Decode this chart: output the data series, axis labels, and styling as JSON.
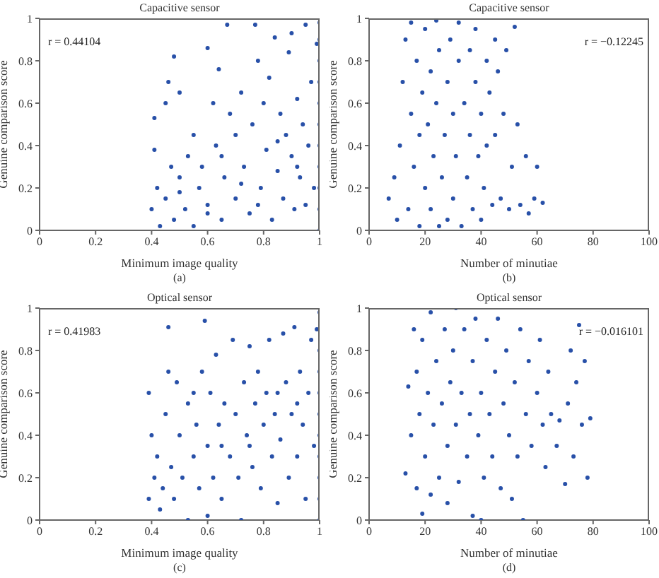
{
  "chart_data": [
    {
      "type": "scatter",
      "title": "Capacitive sensor",
      "xlabel": "Minimum image quality",
      "ylabel": "Genuine comparison score",
      "annotations": [
        "r = 0.44104",
        "(a)"
      ],
      "marker": "circle",
      "xlim": [
        0,
        1
      ],
      "xticks": [
        0,
        0.2,
        0.4,
        0.6,
        0.8,
        1
      ],
      "ylim": [
        0,
        1
      ],
      "yticks": [
        0,
        0.2,
        0.4,
        0.6,
        0.8,
        1
      ],
      "series": [
        {
          "color": "#2850a8",
          "x": [
            0.4,
            0.41,
            0.41,
            0.42,
            0.43,
            0.45,
            0.45,
            0.46,
            0.47,
            0.48,
            0.48,
            0.5,
            0.5,
            0.52,
            0.53,
            0.55,
            0.55,
            0.57,
            0.58,
            0.6,
            0.6,
            0.62,
            0.63,
            0.64,
            0.65,
            0.66,
            0.67,
            0.68,
            0.7,
            0.7,
            0.72,
            0.73,
            0.75,
            0.76,
            0.77,
            0.78,
            0.79,
            0.8,
            0.81,
            0.82,
            0.83,
            0.84,
            0.85,
            0.86,
            0.87,
            0.88,
            0.89,
            0.9,
            0.9,
            0.91,
            0.92,
            0.93,
            0.94,
            0.95,
            0.96,
            0.97,
            0.98,
            0.99,
            1,
            1,
            1,
            1,
            1,
            1,
            1,
            1,
            1,
            1,
            1,
            0.5,
            0.6,
            0.72,
            0.85,
            0.95,
            0.65,
            0.78,
            0.92
          ],
          "values": [
            0.1,
            0.38,
            0.53,
            0.2,
            0.02,
            0.6,
            0.15,
            0.7,
            0.3,
            0.82,
            0.05,
            0.65,
            0.25,
            0.1,
            0.35,
            0.45,
            0.02,
            0.2,
            0.3,
            0.86,
            0.12,
            0.6,
            0.4,
            0.76,
            0.05,
            0.25,
            0.97,
            0.55,
            0.15,
            0.45,
            0.65,
            0.3,
            0.08,
            0.5,
            0.97,
            0.8,
            0.2,
            0.6,
            0.38,
            0.72,
            0.05,
            0.91,
            0.28,
            0.55,
            0.15,
            0.45,
            0.84,
            0.93,
            0.35,
            0.1,
            0.62,
            0.25,
            0.5,
            0.97,
            0.4,
            0.7,
            0.2,
            0.88,
            0,
            0.1,
            0.2,
            0.3,
            0.4,
            0.5,
            0.6,
            0.7,
            0.8,
            0.9,
            0.98,
            0.18,
            0.08,
            0.22,
            0.42,
            0.12,
            0.35,
            0.12,
            0.3
          ]
        }
      ]
    },
    {
      "type": "scatter",
      "title": "Capacitive sensor",
      "xlabel": "Number of minutiae",
      "ylabel": "Genuine comparison score",
      "annotations": [
        "r = −0.12245",
        "(b)"
      ],
      "marker": "circle",
      "xlim": [
        0,
        100
      ],
      "xticks": [
        0,
        20,
        40,
        60,
        80,
        100
      ],
      "ylim": [
        0,
        1
      ],
      "yticks": [
        0,
        0.2,
        0.4,
        0.6,
        0.8,
        1
      ],
      "series": [
        {
          "color": "#2850a8",
          "x": [
            7,
            9,
            10,
            11,
            12,
            13,
            14,
            15,
            15,
            16,
            17,
            18,
            18,
            19,
            20,
            20,
            21,
            22,
            22,
            23,
            24,
            24,
            25,
            25,
            26,
            27,
            28,
            28,
            29,
            30,
            30,
            31,
            32,
            32,
            33,
            34,
            35,
            36,
            36,
            37,
            38,
            38,
            39,
            40,
            40,
            41,
            42,
            42,
            43,
            44,
            45,
            45,
            46,
            47,
            48,
            49,
            50,
            51,
            52,
            53,
            54,
            56,
            57,
            59,
            60,
            62
          ],
          "values": [
            0.15,
            0.25,
            0.05,
            0.4,
            0.7,
            0.9,
            0.1,
            0.55,
            0.98,
            0.3,
            0.8,
            0.02,
            0.45,
            0.65,
            0.2,
            0.95,
            0.5,
            0.75,
            0.1,
            0.35,
            0.6,
            0.99,
            0.02,
            0.85,
            0.25,
            0.45,
            0.7,
            0.05,
            0.9,
            0.15,
            0.55,
            0.35,
            0.8,
            0.98,
            0.02,
            0.6,
            0.25,
            0.45,
            0.85,
            0.1,
            0.7,
            0.95,
            0.35,
            0.55,
            0.05,
            0.2,
            0.8,
            0.4,
            0.65,
            0.12,
            0.9,
            0.45,
            0.75,
            0.15,
            0.55,
            0.85,
            0.1,
            0.3,
            0.96,
            0.5,
            0.12,
            0.35,
            0.08,
            0.15,
            0.3,
            0.13
          ]
        }
      ]
    },
    {
      "type": "scatter",
      "title": "Optical sensor",
      "xlabel": "Minimum image quality",
      "ylabel": "Genuine comparison score",
      "annotations": [
        "r = 0.41983",
        "(c)"
      ],
      "marker": "circle",
      "xlim": [
        0,
        1
      ],
      "xticks": [
        0,
        0.2,
        0.4,
        0.6,
        0.8,
        1
      ],
      "ylim": [
        0,
        1
      ],
      "yticks": [
        0,
        0.2,
        0.4,
        0.6,
        0.8,
        1
      ],
      "series": [
        {
          "color": "#2850a8",
          "x": [
            0.39,
            0.39,
            0.4,
            0.41,
            0.42,
            0.43,
            0.44,
            0.45,
            0.46,
            0.46,
            0.47,
            0.48,
            0.49,
            0.5,
            0.51,
            0.53,
            0.53,
            0.55,
            0.56,
            0.57,
            0.58,
            0.59,
            0.6,
            0.6,
            0.61,
            0.62,
            0.63,
            0.64,
            0.65,
            0.66,
            0.68,
            0.69,
            0.7,
            0.71,
            0.72,
            0.73,
            0.74,
            0.75,
            0.76,
            0.77,
            0.78,
            0.79,
            0.8,
            0.81,
            0.82,
            0.83,
            0.84,
            0.85,
            0.86,
            0.87,
            0.88,
            0.89,
            0.9,
            0.91,
            0.92,
            0.93,
            0.94,
            0.95,
            0.96,
            0.97,
            0.98,
            0.99,
            1,
            1,
            1,
            1,
            1,
            1,
            1,
            1,
            1,
            1,
            1,
            0.55,
            0.65,
            0.75,
            0.85,
            0.92
          ],
          "values": [
            0.6,
            0.1,
            0.4,
            0.2,
            0.3,
            0.05,
            0.15,
            0.5,
            0.91,
            0.7,
            0.25,
            0.1,
            0.65,
            0.4,
            0.2,
            0,
            0.55,
            0.3,
            0.45,
            0.15,
            0.7,
            0.94,
            0.35,
            0.02,
            0.6,
            0.2,
            0.78,
            0.45,
            0.1,
            0.55,
            0.3,
            0.85,
            0.5,
            0.2,
            0,
            0.65,
            0.4,
            0.82,
            0.25,
            0.55,
            0.7,
            0.15,
            0.45,
            0.6,
            0.85,
            0.3,
            0.5,
            0.08,
            0.38,
            0.88,
            0.65,
            0.2,
            0.5,
            0.91,
            0.3,
            0.7,
            0.45,
            0.1,
            0.6,
            0.85,
            0.35,
            0.9,
            0,
            0.1,
            0.2,
            0.3,
            0.4,
            0.5,
            0.6,
            0.7,
            0.8,
            0.9,
            0.98,
            0.6,
            0.35,
            0.35,
            0.6,
            0.55
          ]
        }
      ]
    },
    {
      "type": "scatter",
      "title": "Optical sensor",
      "xlabel": "Number of minutiae",
      "ylabel": "Genuine comparison score",
      "annotations": [
        "r = −0.016101",
        "(d)"
      ],
      "marker": "circle",
      "xlim": [
        0,
        100
      ],
      "xticks": [
        0,
        20,
        40,
        60,
        80,
        100
      ],
      "ylim": [
        0,
        1
      ],
      "yticks": [
        0,
        0.2,
        0.4,
        0.6,
        0.8,
        1
      ],
      "series": [
        {
          "color": "#2850a8",
          "x": [
            13,
            14,
            15,
            16,
            17,
            17,
            18,
            19,
            19,
            20,
            21,
            22,
            22,
            23,
            24,
            25,
            26,
            27,
            28,
            28,
            29,
            30,
            31,
            31,
            32,
            33,
            34,
            35,
            36,
            37,
            37,
            38,
            39,
            40,
            40,
            41,
            42,
            43,
            44,
            45,
            46,
            47,
            48,
            49,
            50,
            51,
            52,
            53,
            54,
            55,
            56,
            57,
            58,
            60,
            61,
            62,
            63,
            64,
            65,
            67,
            68,
            70,
            71,
            72,
            73,
            74,
            75,
            76,
            77,
            78,
            79
          ],
          "values": [
            0.22,
            0.63,
            0.4,
            0.9,
            0.15,
            0.7,
            0.5,
            0.03,
            0.85,
            0.3,
            0.6,
            0.98,
            0.12,
            0.45,
            0.75,
            0.2,
            0.55,
            0.9,
            0.35,
            0.08,
            0.65,
            0.8,
            0.45,
            1,
            0.18,
            0.6,
            0.9,
            0.3,
            0.5,
            0.75,
            0.02,
            0.95,
            0.4,
            0.6,
            0,
            0.2,
            0.85,
            0.5,
            0.3,
            0.7,
            0.95,
            0.15,
            0.55,
            0.8,
            0.4,
            0.1,
            0.65,
            0.3,
            0.9,
            0,
            0.5,
            0.75,
            0.35,
            0.6,
            0.85,
            0.45,
            0.25,
            0.7,
            0.5,
            0.35,
            0.47,
            0.17,
            0.55,
            0.8,
            0.3,
            0.65,
            0.92,
            0.45,
            0.75,
            0.2,
            0.48
          ]
        }
      ]
    }
  ]
}
